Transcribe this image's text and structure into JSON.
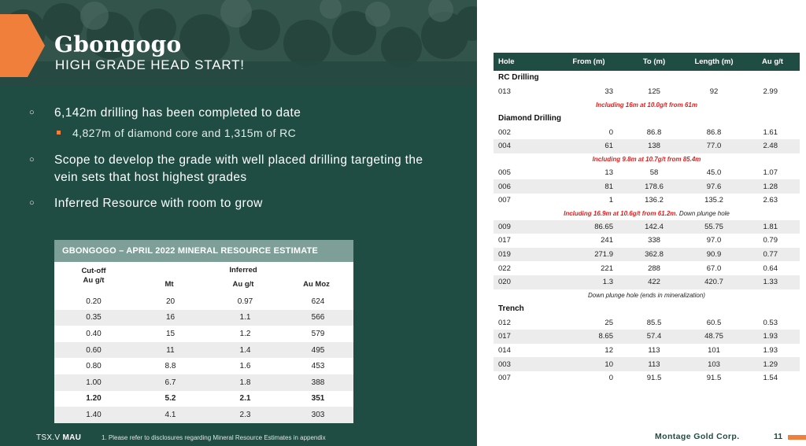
{
  "header": {
    "title": "Gbongogo",
    "subtitle": "HIGH GRADE HEAD START!"
  },
  "bullets": [
    {
      "text": "6,142m drilling has been completed to date",
      "sub": [
        "4,827m of diamond core and 1,315m of RC"
      ]
    },
    {
      "text": "Scope to develop the grade with well placed drilling targeting the vein sets that host highest grades"
    },
    {
      "text": "Inferred Resource with room to grow"
    }
  ],
  "mre_table": {
    "title": "GBONGOGO – APRIL 2022 MINERAL RESOURCE ESTIMATE",
    "cutoff_label_1": "Cut-off",
    "cutoff_label_2": "Au g/t",
    "group_label": "Inferred",
    "col_mt": "Mt",
    "col_aug": "Au g/t",
    "col_moz": "Au Moz",
    "rows": [
      [
        "0.20",
        "20",
        "0.97",
        "624"
      ],
      [
        "0.35",
        "16",
        "1.1",
        "566"
      ],
      [
        "0.40",
        "15",
        "1.2",
        "579"
      ],
      [
        "0.60",
        "11",
        "1.4",
        "495"
      ],
      [
        "0.80",
        "8.8",
        "1.6",
        "453"
      ],
      [
        "1.00",
        "6.7",
        "1.8",
        "388"
      ],
      [
        "1.20",
        "5.2",
        "2.1",
        "351"
      ],
      [
        "1.40",
        "4.1",
        "2.3",
        "303"
      ]
    ],
    "highlight_row": 6
  },
  "drill_table": {
    "headers": [
      "Hole",
      "From (m)",
      "To (m)",
      "Length (m)",
      "Au g/t"
    ],
    "sections": [
      {
        "name": "RC Drilling",
        "items": [
          {
            "row": [
              "013",
              "33",
              "125",
              "92",
              "2.99"
            ]
          },
          {
            "note": "Including 16m at 10.0g/t from 61m",
            "style": "red"
          }
        ]
      },
      {
        "name": "Diamond Drilling",
        "items": [
          {
            "row": [
              "002",
              "0",
              "86.8",
              "86.8",
              "1.61"
            ]
          },
          {
            "row": [
              "004",
              "61",
              "138",
              "77.0",
              "2.48"
            ]
          },
          {
            "note": "Including 9.8m at 10.7g/t from 85.4m",
            "style": "red"
          },
          {
            "row": [
              "005",
              "13",
              "58",
              "45.0",
              "1.07"
            ]
          },
          {
            "row": [
              "006",
              "81",
              "178.6",
              "97.6",
              "1.28"
            ]
          },
          {
            "row": [
              "007",
              "1",
              "136.2",
              "135.2",
              "2.63"
            ]
          },
          {
            "note": "Including 16.9m at 10.6g/t from 61.2m.",
            "note_plain": " Down plunge hole",
            "style": "mixed"
          },
          {
            "row": [
              "009",
              "86.65",
              "142.4",
              "55.75",
              "1.81"
            ]
          },
          {
            "row": [
              "017",
              "241",
              "338",
              "97.0",
              "0.79"
            ]
          },
          {
            "row": [
              "019",
              "271.9",
              "362.8",
              "90.9",
              "0.77"
            ]
          },
          {
            "row": [
              "022",
              "221",
              "288",
              "67.0",
              "0.64"
            ]
          },
          {
            "row": [
              "020",
              "1.3",
              "422",
              "420.7",
              "1.33"
            ]
          },
          {
            "note": "Down plunge hole (ends in mineralization)",
            "style": "dark"
          }
        ]
      },
      {
        "name": "Trench",
        "items": [
          {
            "row": [
              "012",
              "25",
              "85.5",
              "60.5",
              "0.53"
            ]
          },
          {
            "row": [
              "017",
              "8.65",
              "57.4",
              "48.75",
              "1.93"
            ]
          },
          {
            "row": [
              "014",
              "12",
              "113",
              "101",
              "1.93"
            ]
          },
          {
            "row": [
              "003",
              "10",
              "113",
              "103",
              "1.29"
            ]
          },
          {
            "row": [
              "007",
              "0",
              "91.5",
              "91.5",
              "1.54"
            ]
          }
        ]
      }
    ]
  },
  "footer": {
    "ticker_exchange": "TSX.V",
    "ticker_symbol": "MAU",
    "footnote": "1.   Please refer to disclosures regarding Mineral Resource Estimates in appendix",
    "company": "Montage Gold Corp.",
    "page_number": "11"
  },
  "colors": {
    "brand_green": "#1f4d43",
    "accent_orange": "#f07f3c",
    "table_header_teal": "#7e9f98",
    "note_red": "#e21f1f"
  }
}
